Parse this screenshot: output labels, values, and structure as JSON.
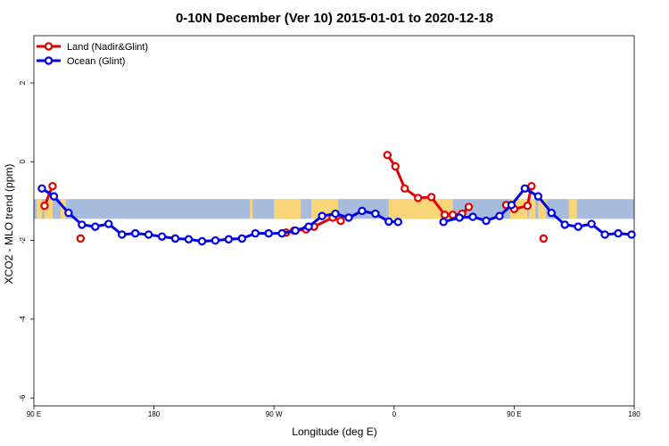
{
  "chart_data": {
    "type": "line",
    "title": "0-10N December (Ver 10)   2015-01-01 to 2020-12-18",
    "xlabel": "Longitude (deg E)",
    "ylabel": "XCO2 - MLO trend (ppm)",
    "xlim": [
      90,
      540
    ],
    "ylim": [
      -6.2,
      3.2
    ],
    "x_ticks": [
      {
        "value": 90,
        "label": "90 E"
      },
      {
        "value": 180,
        "label": "180"
      },
      {
        "value": 270,
        "label": "90 W"
      },
      {
        "value": 360,
        "label": "0"
      },
      {
        "value": 450,
        "label": "90 E"
      },
      {
        "value": 540,
        "label": "180"
      }
    ],
    "y_ticks": [
      {
        "value": 2,
        "label": "2"
      },
      {
        "value": 0,
        "label": "0"
      },
      {
        "value": -2,
        "label": "-2"
      },
      {
        "value": -4,
        "label": "-4"
      },
      {
        "value": -6,
        "label": "-6"
      }
    ],
    "legend_position": "top-left",
    "background_band": {
      "ymin": -1.45,
      "ymax": -0.95,
      "ocean_color": "#a7bcdc",
      "land_color": "#f9d57a"
    },
    "series": [
      {
        "name": "Land (Nadir&Glint)",
        "color": "#e10000",
        "segments": [
          [
            [
              98,
              -1.12
            ],
            [
              104,
              -0.62
            ]
          ],
          [
            [
              125,
              -1.95
            ]
          ],
          [
            [
              279,
              -1.8
            ],
            [
              285,
              -1.75
            ],
            [
              294,
              -1.72
            ],
            [
              300,
              -1.65
            ],
            [
              314,
              -1.42
            ],
            [
              320,
              -1.5
            ]
          ],
          [
            [
              355,
              0.17
            ],
            [
              361,
              -0.12
            ],
            [
              368,
              -0.68
            ],
            [
              378,
              -0.92
            ],
            [
              388,
              -0.9
            ],
            [
              398,
              -1.35
            ],
            [
              404,
              -1.35
            ],
            [
              411,
              -1.32
            ],
            [
              416,
              -1.15
            ]
          ],
          [
            [
              444,
              -1.1
            ],
            [
              450,
              -1.2
            ],
            [
              460,
              -1.12
            ],
            [
              463,
              -0.62
            ]
          ],
          [
            [
              472,
              -1.95
            ]
          ]
        ]
      },
      {
        "name": "Ocean (Glint)",
        "color": "#0000e6",
        "segments": [
          [
            [
              96,
              -0.68
            ],
            [
              105,
              -0.88
            ],
            [
              116,
              -1.3
            ],
            [
              126,
              -1.6
            ],
            [
              136,
              -1.65
            ],
            [
              146,
              -1.58
            ],
            [
              156,
              -1.85
            ],
            [
              166,
              -1.82
            ],
            [
              176,
              -1.85
            ],
            [
              186,
              -1.9
            ],
            [
              196,
              -1.95
            ],
            [
              206,
              -1.97
            ],
            [
              216,
              -2.02
            ],
            [
              226,
              -2.0
            ],
            [
              236,
              -1.97
            ],
            [
              246,
              -1.95
            ],
            [
              256,
              -1.82
            ],
            [
              266,
              -1.82
            ],
            [
              276,
              -1.82
            ],
            [
              286,
              -1.75
            ],
            [
              296,
              -1.65
            ],
            [
              306,
              -1.38
            ],
            [
              316,
              -1.32
            ],
            [
              326,
              -1.42
            ],
            [
              336,
              -1.25
            ],
            [
              346,
              -1.32
            ],
            [
              356,
              -1.52
            ],
            [
              363,
              -1.53
            ]
          ],
          [
            [
              397,
              -1.53
            ],
            [
              409,
              -1.42
            ],
            [
              419,
              -1.4
            ],
            [
              429,
              -1.5
            ],
            [
              439,
              -1.38
            ],
            [
              448,
              -1.1
            ],
            [
              458,
              -0.68
            ],
            [
              468,
              -0.88
            ],
            [
              478,
              -1.3
            ],
            [
              488,
              -1.6
            ],
            [
              498,
              -1.65
            ],
            [
              508,
              -1.58
            ],
            [
              518,
              -1.85
            ],
            [
              528,
              -1.82
            ],
            [
              538,
              -1.85
            ]
          ]
        ]
      }
    ]
  }
}
